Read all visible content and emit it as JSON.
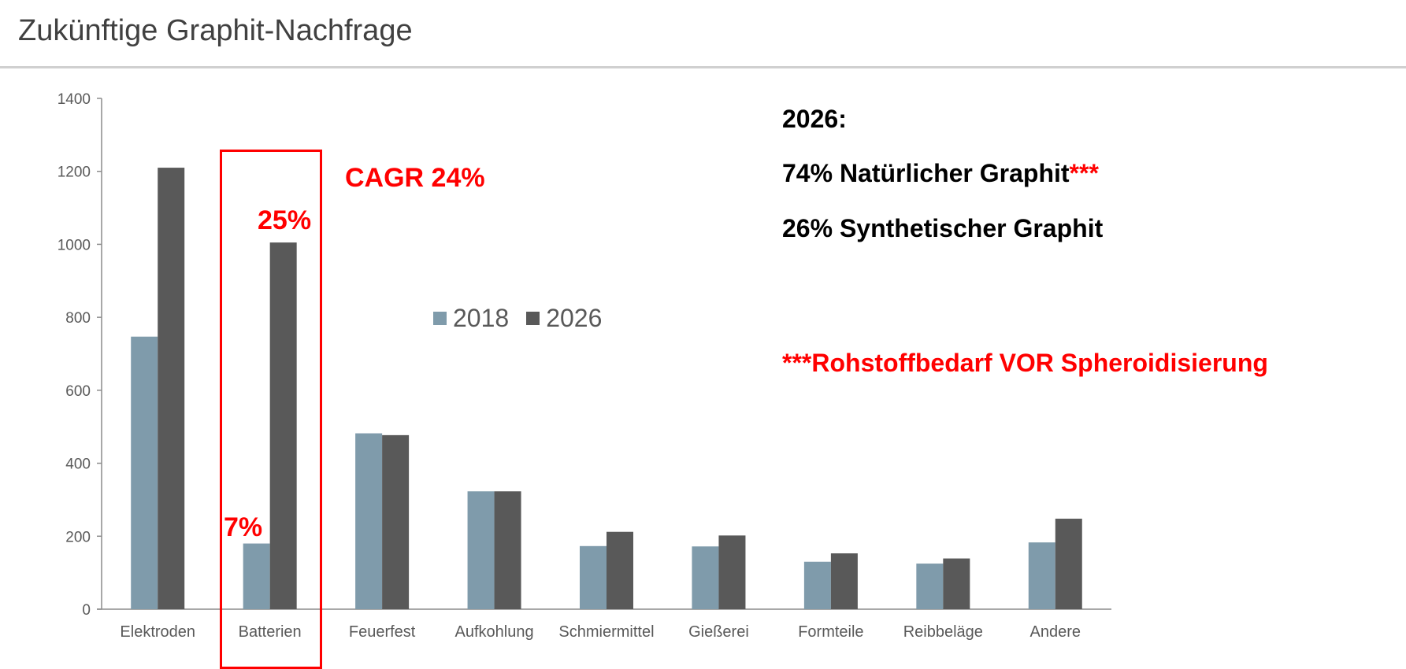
{
  "header": {
    "title": "Zukünftige Graphit-Nachfrage"
  },
  "chart_data": {
    "type": "bar",
    "categories": [
      "Elektroden",
      "Batterien",
      "Feuerfest",
      "Aufkohlung",
      "Schmiermittel",
      "Gießerei",
      "Formteile",
      "Reibbeläge",
      "Andere"
    ],
    "series": [
      {
        "name": "2018",
        "color": "#7f9bab",
        "values": [
          747,
          180,
          482,
          323,
          173,
          172,
          130,
          125,
          183
        ]
      },
      {
        "name": "2026",
        "color": "#595959",
        "values": [
          1210,
          1005,
          477,
          323,
          212,
          202,
          153,
          139,
          248
        ]
      }
    ],
    "ylim": [
      0,
      1400
    ],
    "yticks": [
      "0",
      "200",
      "400",
      "600",
      "800",
      "1000",
      "1200",
      "1400"
    ],
    "grid": false,
    "legend": "center",
    "annotations": {
      "cagr": "CAGR 24%",
      "share_2026_batterien": "25%",
      "share_2018_batterien": "7%"
    }
  },
  "notes": {
    "heading": "2026:",
    "natural_prefix": "74% Natürlicher Graphit",
    "natural_stars": "***",
    "synthetic": "26% Synthetischer Graphit",
    "footnote": "***Rohstoffbedarf VOR Spheroidisierung"
  },
  "colors": {
    "accent": "#ff0000"
  }
}
